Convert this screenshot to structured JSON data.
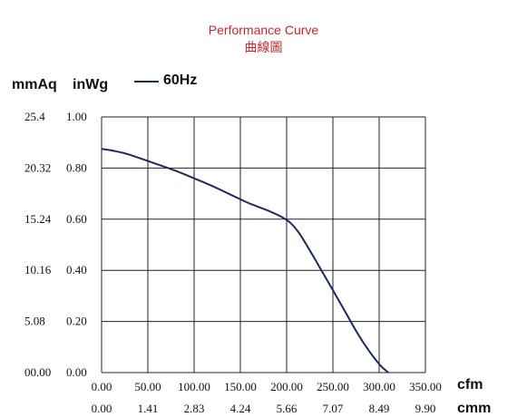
{
  "header": {
    "title": "Performance Curve",
    "subtitle": "曲線圖"
  },
  "units": {
    "y_mmaq": "mmAq",
    "y_inwg": "inWg",
    "x_cfm": "cfm",
    "x_cmm": "cmm"
  },
  "chart_data": {
    "type": "line",
    "series": [
      {
        "name": "60Hz",
        "color": "#1a2a5a",
        "x": [
          0,
          20,
          40,
          60,
          80,
          100,
          120,
          140,
          160,
          180,
          200,
          210,
          220,
          240,
          260,
          280,
          300,
          310
        ],
        "y": [
          0.875,
          0.865,
          0.84,
          0.815,
          0.79,
          0.76,
          0.73,
          0.695,
          0.66,
          0.635,
          0.6,
          0.565,
          0.51,
          0.385,
          0.26,
          0.13,
          0.03,
          0.0
        ]
      }
    ],
    "xlim": [
      0,
      350
    ],
    "ylim": [
      0,
      1.0
    ],
    "grid": true,
    "x_ticks_cfm": [
      "0.00",
      "50.00",
      "100.00",
      "150.00",
      "200.00",
      "250.00",
      "300.00",
      "350.00"
    ],
    "x_ticks_cmm": [
      "0.00",
      "1.41",
      "2.83",
      "4.24",
      "5.66",
      "7.07",
      "8.49",
      "9.90"
    ],
    "y_ticks_inwg": [
      "0.00",
      "0.20",
      "0.40",
      "0.60",
      "0.80",
      "1.00"
    ],
    "y_ticks_mmaq": [
      "00.00",
      "5.08",
      "10.16",
      "15.24",
      "20.32",
      "25.4"
    ]
  }
}
